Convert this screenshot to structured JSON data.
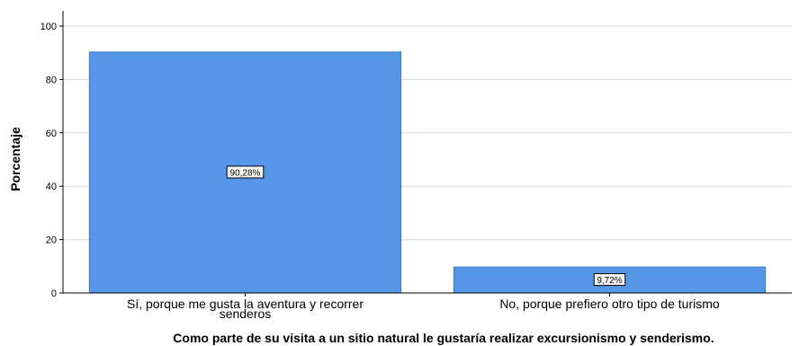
{
  "chart_data": {
    "type": "bar",
    "categories": [
      [
        "Sí, porque me gusta la aventura y recorrer",
        "senderos"
      ],
      [
        "No, porque prefiero otro tipo de turismo"
      ]
    ],
    "values": [
      90.28,
      9.72
    ],
    "data_labels": [
      "90,28%",
      "9,72%"
    ],
    "xlabel": "Como parte de su visita a un sitio natural le gustaría realizar excursionismo y senderismo.",
    "ylabel": "Porcentaje",
    "ylim": [
      0,
      100
    ],
    "yticks": [
      0,
      20,
      40,
      60,
      80,
      100
    ],
    "grid": "horizontal",
    "bar_color": "#5596e6",
    "bar_edge_color": "#3a7bd5",
    "grid_color": "#d9d9d9",
    "axis_color": "#000000"
  }
}
